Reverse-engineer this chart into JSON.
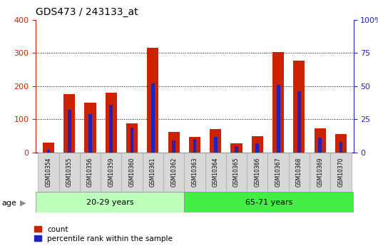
{
  "title": "GDS473 / 243133_at",
  "samples": [
    "GSM10354",
    "GSM10355",
    "GSM10356",
    "GSM10359",
    "GSM10360",
    "GSM10361",
    "GSM10362",
    "GSM10363",
    "GSM10364",
    "GSM10365",
    "GSM10366",
    "GSM10367",
    "GSM10368",
    "GSM10369",
    "GSM10370"
  ],
  "count": [
    30,
    175,
    150,
    180,
    88,
    315,
    63,
    47,
    70,
    28,
    50,
    303,
    277,
    73,
    56
  ],
  "percentile_pct": [
    2,
    32,
    29,
    36,
    19,
    52,
    9,
    10,
    12,
    5,
    7,
    51,
    46,
    11,
    8
  ],
  "group1_label": "20-29 years",
  "group2_label": "65-71 years",
  "group1_count": 7,
  "group2_count": 8,
  "ylim_left": [
    0,
    400
  ],
  "ylim_right": [
    0,
    100
  ],
  "yticks_left": [
    0,
    100,
    200,
    300,
    400
  ],
  "yticks_right": [
    0,
    25,
    50,
    75,
    100
  ],
  "count_color": "#cc2200",
  "percentile_color": "#2222bb",
  "group1_bg": "#bbffbb",
  "group2_bg": "#44ee44",
  "legend_count_label": "count",
  "legend_percentile_label": "percentile rank within the sample",
  "age_label": "age",
  "tick_bg": "#d8d8d8"
}
